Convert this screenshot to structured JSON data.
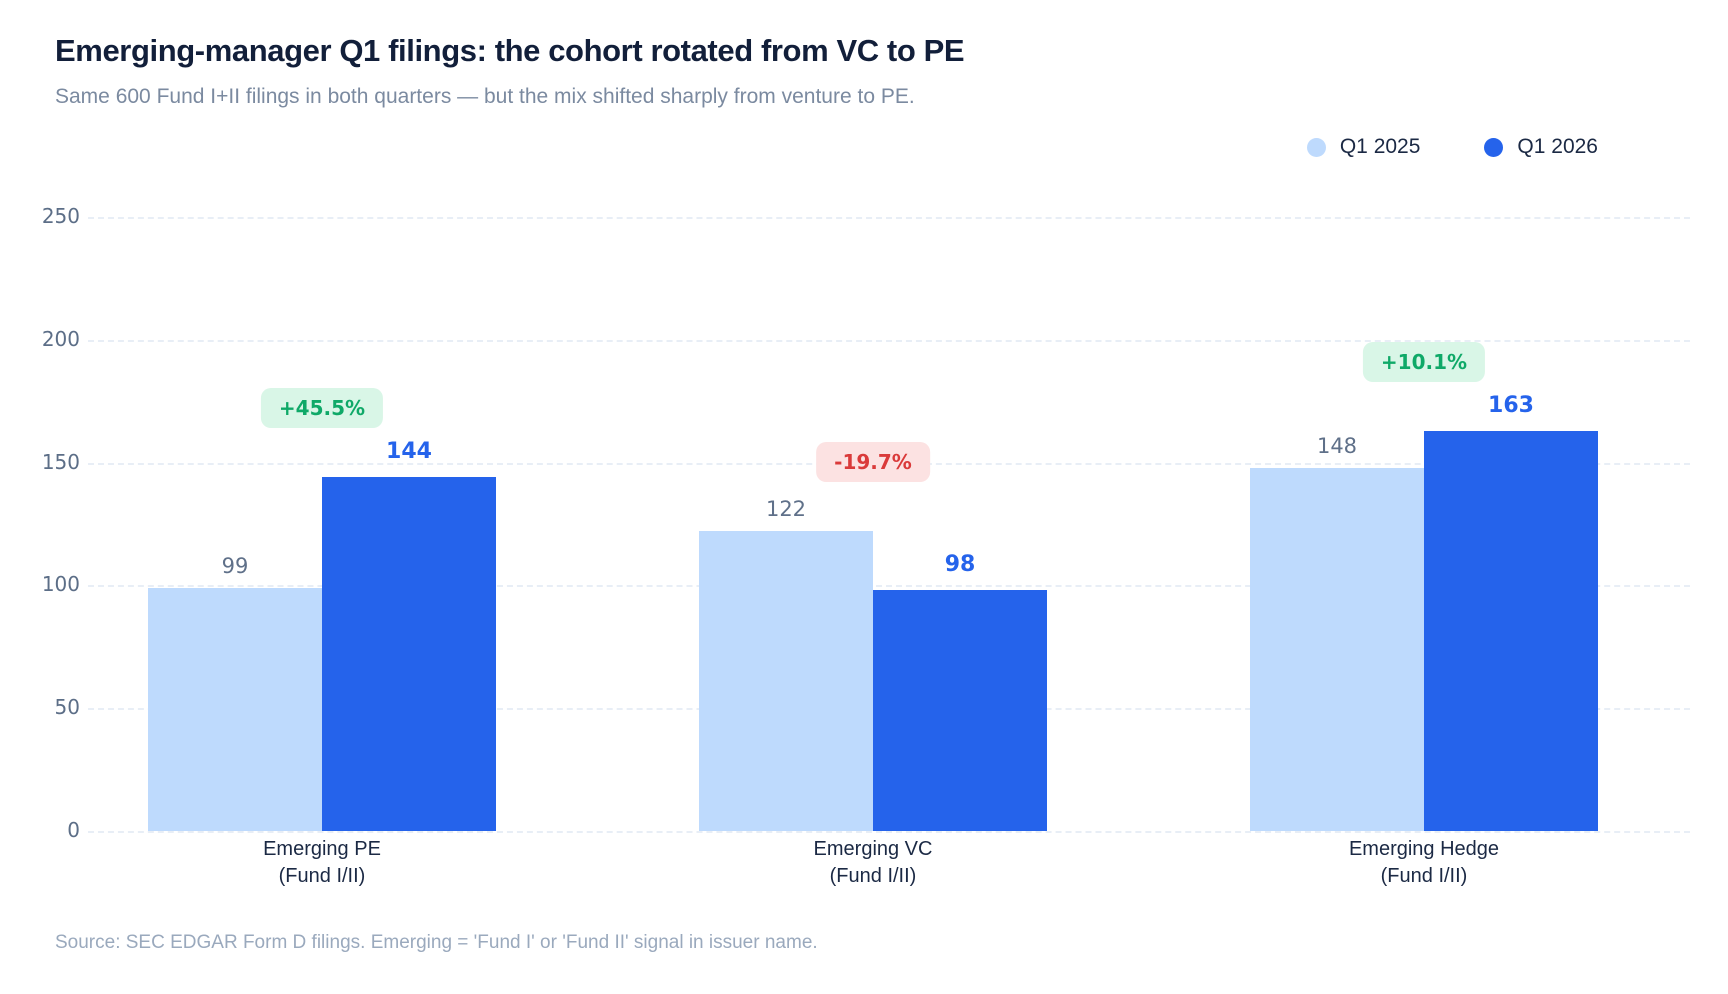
{
  "chart_data": {
    "type": "bar",
    "title": "Emerging-manager Q1 filings: the cohort rotated from VC to PE",
    "subtitle": "Same 600 Fund I+II filings in both quarters — but the mix shifted sharply from venture to PE.",
    "categories": [
      "Emerging PE\n(Fund I/II)",
      "Emerging VC\n(Fund I/II)",
      "Emerging Hedge\n(Fund I/II)"
    ],
    "series": [
      {
        "name": "Q1 2025",
        "color": "#bedafd",
        "values": [
          99,
          122,
          148
        ]
      },
      {
        "name": "Q1 2026",
        "color": "#2563eb",
        "values": [
          144,
          98,
          163
        ]
      }
    ],
    "change_badges": [
      {
        "label": "+45.5%",
        "direction": "up"
      },
      {
        "label": "-19.7%",
        "direction": "down"
      },
      {
        "label": "+10.1%",
        "direction": "up"
      }
    ],
    "yticks": [
      0,
      50,
      100,
      150,
      200,
      250
    ],
    "ylim": [
      0,
      250
    ],
    "xlabel": "",
    "ylabel": "",
    "grid": "horizontal-dashed",
    "legend_position": "top-right",
    "badge_colors": {
      "up": {
        "bg": "#d9f6e7",
        "text": "#0fa968"
      },
      "down": {
        "bg": "#fce2e2",
        "text": "#da3a3a"
      }
    },
    "value_label_colors": {
      "q1_2025": "#5f7089",
      "q1_2026": "#2563eb"
    }
  },
  "footer": {
    "source": "Source: SEC EDGAR Form D filings. Emerging = 'Fund I' or 'Fund II' signal in issuer name."
  }
}
